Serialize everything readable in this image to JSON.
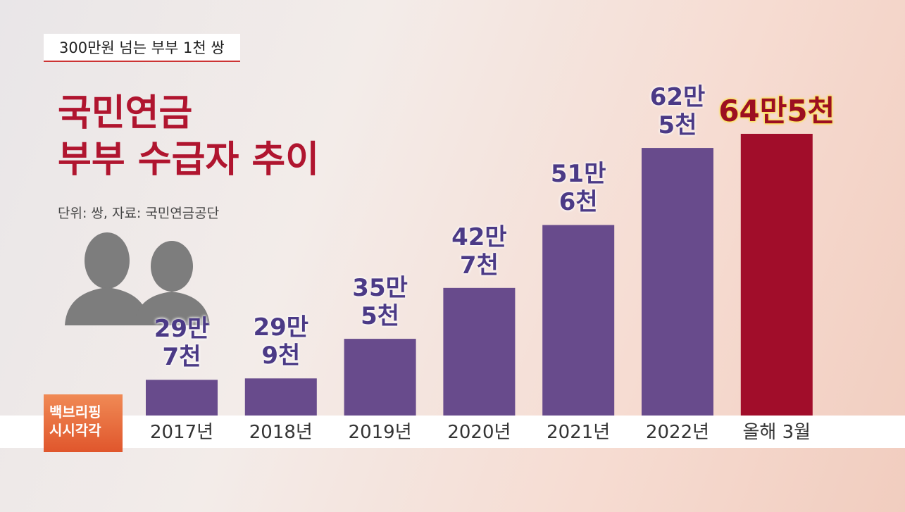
{
  "banner": "300만원 넘는 부부 1천 쌍",
  "logo": "백브리핑\n시시각각",
  "chart_data": {
    "type": "bar",
    "title": "국민연금\n부부 수급자 추이",
    "subtitle": "단위: 쌍, 자료: 국민연금공단",
    "categories": [
      "2017년",
      "2018년",
      "2019년",
      "2020년",
      "2021년",
      "2022년",
      "올해 3월"
    ],
    "values": [
      297000,
      299000,
      355000,
      427000,
      516000,
      625000,
      645000
    ],
    "value_labels": [
      "29만\n7천",
      "29만\n9천",
      "35만\n5천",
      "42만\n7천",
      "51만\n6천",
      "62만\n5천",
      "64만5천"
    ],
    "colors": [
      "#684b8c",
      "#684b8c",
      "#684b8c",
      "#684b8c",
      "#684b8c",
      "#684b8c",
      "#a10d2a"
    ]
  }
}
